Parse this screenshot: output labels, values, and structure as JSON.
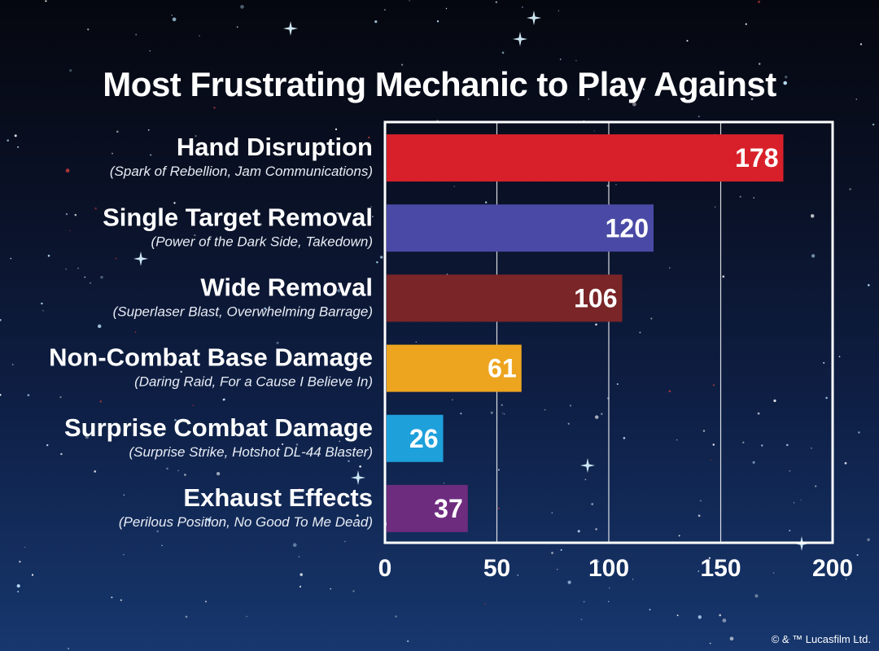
{
  "copyright": "© & ™ Lucasfilm Ltd.",
  "chart_data": {
    "type": "bar",
    "orientation": "horizontal",
    "title": "Most Frustrating Mechanic to Play Against",
    "xlim": [
      0,
      200
    ],
    "xticks": [
      0,
      50,
      100,
      150,
      200
    ],
    "grid": true,
    "categories": [
      "Hand Disruption",
      "Single Target Removal",
      "Wide Removal",
      "Non-Combat Base Damage",
      "Surprise Combat Damage",
      "Exhaust Effects"
    ],
    "subtitles": [
      "(Spark of Rebellion, Jam Communications)",
      "(Power of the Dark Side, Takedown)",
      "(Superlaser Blast, Overwhelming Barrage)",
      "(Daring Raid, For a Cause I Believe In)",
      "(Surprise Strike, Hotshot DL-44 Blaster)",
      "(Perilous Position, No Good To Me Dead)"
    ],
    "values": [
      178,
      120,
      106,
      61,
      26,
      37
    ],
    "colors": [
      "#d8202a",
      "#4a4aa6",
      "#7a2528",
      "#eda51f",
      "#1ea0db",
      "#6e2c7f"
    ]
  }
}
